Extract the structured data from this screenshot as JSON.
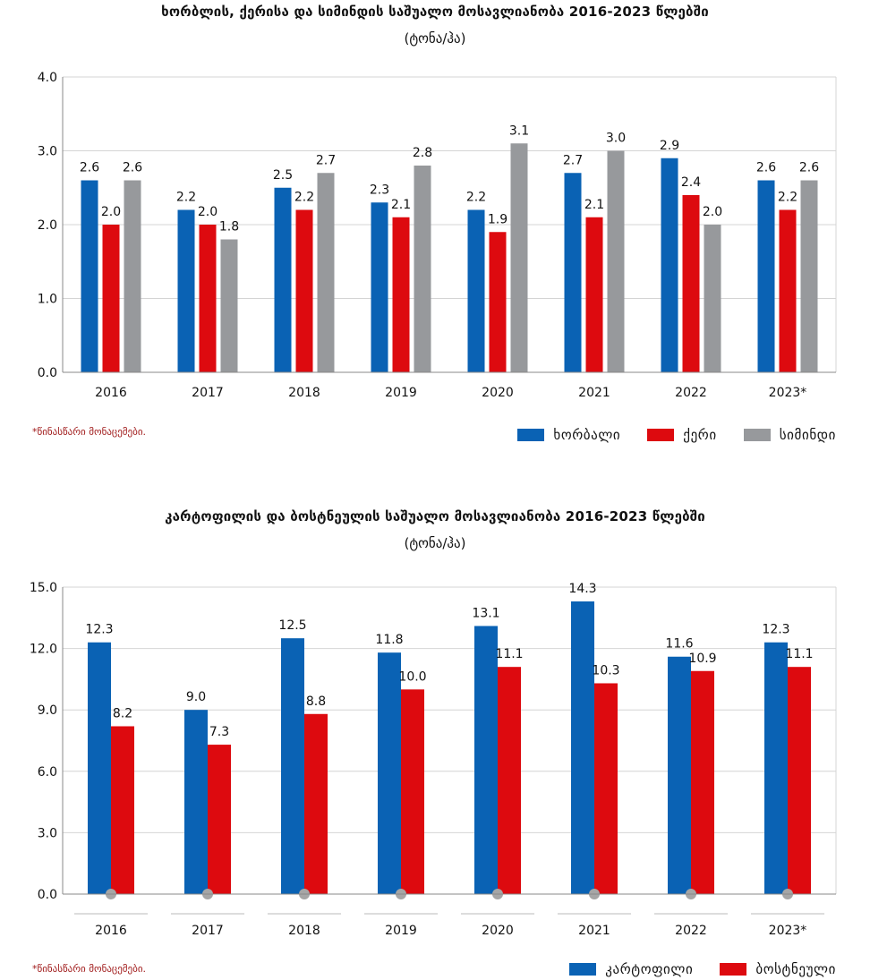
{
  "chart_data": [
    {
      "type": "bar",
      "title": "ხორბლის, ქერისა და სიმინდის საშუალო მოსავლიანობა 2016-2023 წლებში",
      "unit": "(ტონა/ჰა)",
      "categories": [
        "2016",
        "2017",
        "2018",
        "2019",
        "2020",
        "2021",
        "2022",
        "2023*"
      ],
      "series": [
        {
          "name": "ხორბალი",
          "color": "#0a62b4",
          "values": [
            2.6,
            2.2,
            2.5,
            2.3,
            2.2,
            2.7,
            2.9,
            2.6
          ]
        },
        {
          "name": "ქერი",
          "color": "#dd0a0f",
          "values": [
            2.0,
            2.0,
            2.2,
            2.1,
            1.9,
            2.1,
            2.4,
            2.2
          ]
        },
        {
          "name": "სიმინდი",
          "color": "#97999c",
          "values": [
            2.6,
            1.8,
            2.7,
            2.8,
            3.1,
            3.0,
            2.0,
            2.6
          ]
        }
      ],
      "yticks": [
        "0.0",
        "1.0",
        "2.0",
        "3.0",
        "4.0"
      ],
      "ylim": [
        0,
        4
      ],
      "grid": true,
      "legend_position": "bottom-right",
      "footnote": "*წინასწარი მონაცემები."
    },
    {
      "type": "bar",
      "title": "კარტოფილის და ბოსტნეულის საშუალო მოსავლიანობა 2016-2023 წლებში",
      "unit": "(ტონა/ჰა)",
      "categories": [
        "2016",
        "2017",
        "2018",
        "2019",
        "2020",
        "2021",
        "2022",
        "2023*"
      ],
      "series": [
        {
          "name": "კარტოფილი",
          "color": "#0a62b4",
          "values": [
            12.3,
            9.0,
            12.5,
            11.8,
            13.1,
            14.3,
            11.6,
            12.3
          ]
        },
        {
          "name": "ბოსტნეული",
          "color": "#dd0a0f",
          "values": [
            8.2,
            7.3,
            8.8,
            10.0,
            11.1,
            10.3,
            10.9,
            11.1
          ]
        }
      ],
      "yticks": [
        "0.0",
        "3.0",
        "6.0",
        "9.0",
        "12.0",
        "15.0"
      ],
      "ylim": [
        0,
        15
      ],
      "grid": true,
      "legend_position": "bottom-right",
      "footnote": "*წინასწარი მონაცემები."
    }
  ]
}
